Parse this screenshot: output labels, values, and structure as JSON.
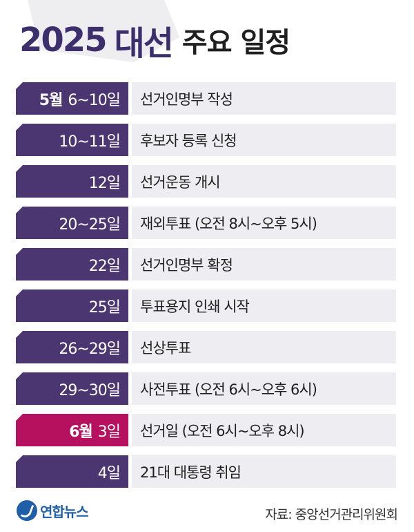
{
  "title": {
    "year": "2025",
    "election": "대선",
    "rest": "주요 일정"
  },
  "schedule": [
    {
      "month": "5월",
      "day": "6~10일",
      "event": "선거인명부 작성",
      "highlight": false
    },
    {
      "month": "",
      "day": "10~11일",
      "event": "후보자 등록 신청",
      "highlight": false
    },
    {
      "month": "",
      "day": "12일",
      "event": "선거운동 개시",
      "highlight": false
    },
    {
      "month": "",
      "day": "20~25일",
      "event": "재외투표 (오전 8시~오후 5시)",
      "highlight": false
    },
    {
      "month": "",
      "day": "22일",
      "event": "선거인명부 확정",
      "highlight": false
    },
    {
      "month": "",
      "day": "25일",
      "event": "투표용지 인쇄 시작",
      "highlight": false
    },
    {
      "month": "",
      "day": "26~29일",
      "event": "선상투표",
      "highlight": false
    },
    {
      "month": "",
      "day": "29~30일",
      "event": "사전투표 (오전 6시~오후 6시)",
      "highlight": false
    },
    {
      "month": "6월",
      "day": "3일",
      "event": "선거일 (오전 6시~오후 8시)",
      "highlight": true
    },
    {
      "month": "",
      "day": "4일",
      "event": "21대 대통령 취임",
      "highlight": false
    }
  ],
  "footer": {
    "logo_text": "연합뉴스",
    "logo_icon": "yonhap-logo-icon",
    "source": "자료: 중앙선거관리위원회"
  },
  "colors": {
    "date_bg": "#4b3671",
    "highlight_bg": "#b6115f",
    "event_bg": "#eeeef2",
    "title_accent": "#3c2f6b",
    "logo": "#1f5fa8"
  }
}
